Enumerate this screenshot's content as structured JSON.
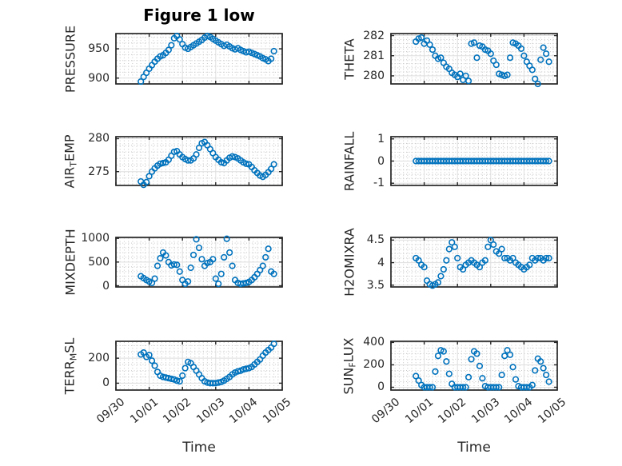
{
  "figure": {
    "title": "Figure 1 low",
    "xlabel": "Time",
    "background": "#ffffff",
    "marker_color": "#0072BD",
    "frame_color": "#262626",
    "major_grid_color": "#dedede",
    "minor_grid_color": "#c6c6c6",
    "text_color": "#262626"
  },
  "chart_data": {
    "type": "scatter",
    "title": "Figure 1 low",
    "xlabel": "Time",
    "x_unit": "days since 09/30",
    "xlim": [
      0,
      5
    ],
    "x_major_ticks": [
      0,
      1,
      2,
      3,
      4,
      5
    ],
    "x_tick_labels": [
      "09/30",
      "10/01",
      "10/02",
      "10/03",
      "10/04",
      "10/05"
    ],
    "x_minor_step": 0.125,
    "grid": "major solid + dotted minor, box on, ticks at majors",
    "legend": "none",
    "x": [
      0.75,
      0.833,
      0.917,
      1,
      1.083,
      1.167,
      1.25,
      1.333,
      1.417,
      1.5,
      1.583,
      1.667,
      1.75,
      1.833,
      1.917,
      2,
      2.083,
      2.167,
      2.25,
      2.333,
      2.417,
      2.5,
      2.583,
      2.667,
      2.75,
      2.833,
      2.917,
      3,
      3.083,
      3.167,
      3.25,
      3.333,
      3.417,
      3.5,
      3.583,
      3.667,
      3.75,
      3.833,
      3.917,
      4,
      4.083,
      4.167,
      4.25,
      4.333,
      4.417,
      4.5,
      4.583,
      4.667,
      4.75
    ],
    "subplots": [
      {
        "name": "PRESSURE",
        "row": 0,
        "col": 0,
        "label_parts": [
          {
            "text": "PRESSURE"
          }
        ],
        "ylim": [
          890,
          976
        ],
        "yticks": [
          900,
          950
        ],
        "ytick_labels": [
          "900",
          "950"
        ],
        "y_minor_step": 10,
        "values": [
          894,
          902,
          909,
          916,
          922,
          928,
          933,
          937,
          939,
          943,
          948,
          956,
          968,
          972,
          966,
          958,
          952,
          950,
          953,
          956,
          959,
          962,
          965,
          969,
          972,
          970,
          967,
          964,
          961,
          958,
          955,
          957,
          954,
          951,
          949,
          951,
          948,
          946,
          944,
          945,
          943,
          941,
          939,
          937,
          934,
          932,
          929,
          933,
          946
        ]
      },
      {
        "name": "THETA",
        "row": 0,
        "col": 1,
        "label_parts": [
          {
            "text": "THETA"
          }
        ],
        "ylim": [
          279.6,
          282.1
        ],
        "yticks": [
          280,
          281,
          282
        ],
        "ytick_labels": [
          "280",
          "281",
          "282"
        ],
        "y_minor_step": 0.2,
        "values": [
          281.7,
          281.85,
          281.9,
          281.6,
          281.75,
          281.55,
          281.3,
          281,
          280.85,
          280.9,
          280.65,
          280.45,
          280.35,
          280.15,
          280.05,
          279.95,
          280.1,
          279.8,
          280,
          279.75,
          281.6,
          281.65,
          280.9,
          281.5,
          281.45,
          281.3,
          281.25,
          281.1,
          280.75,
          280.55,
          280.1,
          280.05,
          280,
          280.05,
          280.9,
          281.65,
          281.6,
          281.5,
          281.35,
          281,
          280.7,
          280.5,
          280.3,
          279.85,
          279.6,
          280.8,
          281.4,
          281.1,
          280.7
        ]
      },
      {
        "name": "AIR_TEMP",
        "row": 1,
        "col": 0,
        "label_parts": [
          {
            "text": "AIR"
          },
          {
            "text": "T",
            "sub": true
          },
          {
            "text": "EMP"
          }
        ],
        "ylim": [
          272.9,
          280.3
        ],
        "yticks": [
          275,
          280
        ],
        "ytick_labels": [
          "275",
          "280"
        ],
        "y_minor_step": 1,
        "values": [
          273.5,
          273,
          273.4,
          274.3,
          275,
          275.5,
          275.9,
          276.2,
          276.3,
          276.4,
          276.8,
          277.4,
          278,
          278.1,
          277.6,
          277.2,
          276.9,
          276.7,
          276.7,
          277,
          277.6,
          278.6,
          279.3,
          279.5,
          279,
          278.4,
          277.8,
          277.2,
          276.8,
          276.4,
          276.3,
          276.7,
          277.1,
          277.3,
          277.2,
          277,
          276.7,
          276.4,
          276.2,
          276.1,
          275.7,
          275.2,
          274.8,
          274.4,
          274.2,
          274.5,
          274.9,
          275.4,
          276.1
        ]
      },
      {
        "name": "RAINFALL",
        "row": 1,
        "col": 1,
        "label_parts": [
          {
            "text": "RAINFALL"
          }
        ],
        "ylim": [
          -1.1,
          1.1
        ],
        "yticks": [
          -1,
          0,
          1
        ],
        "ytick_labels": [
          "-1",
          "0",
          "1"
        ],
        "y_minor_step": 0.2,
        "values": [
          0,
          0,
          0,
          0,
          0,
          0,
          0,
          0,
          0,
          0,
          0,
          0,
          0,
          0,
          0,
          0,
          0,
          0,
          0,
          0,
          0,
          0,
          0,
          0,
          0,
          0,
          0,
          0,
          0,
          0,
          0,
          0,
          0,
          0,
          0,
          0,
          0,
          0,
          0,
          0,
          0,
          0,
          0,
          0,
          0,
          0,
          0,
          0,
          0
        ]
      },
      {
        "name": "MIXDEPTH",
        "row": 2,
        "col": 0,
        "label_parts": [
          {
            "text": "MIXDEPTH"
          }
        ],
        "ylim": [
          -25,
          1020
        ],
        "yticks": [
          0,
          500,
          1000
        ],
        "ytick_labels": [
          "0",
          "500",
          "1000"
        ],
        "y_minor_step": 100,
        "values": [
          200,
          160,
          120,
          90,
          60,
          150,
          420,
          580,
          700,
          640,
          500,
          430,
          450,
          440,
          300,
          120,
          40,
          90,
          380,
          650,
          980,
          800,
          560,
          420,
          480,
          500,
          560,
          150,
          40,
          250,
          600,
          990,
          700,
          420,
          120,
          60,
          40,
          50,
          60,
          80,
          120,
          180,
          250,
          330,
          420,
          600,
          780,
          300,
          250
        ]
      },
      {
        "name": "H2OMIXRA",
        "row": 2,
        "col": 1,
        "label_parts": [
          {
            "text": "H2OMIXRA"
          }
        ],
        "ylim": [
          3.46,
          4.56
        ],
        "yticks": [
          3.5,
          4,
          4.5
        ],
        "ytick_labels": [
          "3.5",
          "4",
          "4.5"
        ],
        "y_minor_step": 0.1,
        "values": [
          4.1,
          4.05,
          3.95,
          3.9,
          3.6,
          3.52,
          3.49,
          3.52,
          3.56,
          3.7,
          3.85,
          4.05,
          4.3,
          4.45,
          4.35,
          4.1,
          3.9,
          3.85,
          3.95,
          4,
          4.05,
          4,
          3.95,
          3.9,
          4,
          4.05,
          4.35,
          4.5,
          4.4,
          4.25,
          4.2,
          4.3,
          4.1,
          4.1,
          4.05,
          4.1,
          4,
          3.95,
          3.9,
          3.85,
          3.9,
          3.95,
          4.1,
          4.05,
          4.1,
          4.1,
          4.05,
          4.1,
          4.1
        ]
      },
      {
        "name": "TERR_MSL",
        "row": 3,
        "col": 0,
        "label_parts": [
          {
            "text": "TERR"
          },
          {
            "text": "M",
            "sub": true
          },
          {
            "text": "SL"
          }
        ],
        "ylim": [
          -55,
          335
        ],
        "yticks": [
          0,
          200
        ],
        "ytick_labels": [
          "0",
          "200"
        ],
        "y_minor_step": 50,
        "values": [
          230,
          245,
          210,
          225,
          180,
          140,
          90,
          60,
          50,
          45,
          40,
          35,
          30,
          20,
          15,
          60,
          120,
          170,
          160,
          130,
          100,
          70,
          40,
          15,
          5,
          0,
          0,
          0,
          5,
          10,
          20,
          35,
          50,
          70,
          85,
          95,
          100,
          110,
          115,
          120,
          130,
          150,
          170,
          190,
          220,
          245,
          265,
          285,
          315
        ]
      },
      {
        "name": "SUN_FLUX",
        "row": 3,
        "col": 1,
        "label_parts": [
          {
            "text": "SUN"
          },
          {
            "text": "F",
            "sub": true
          },
          {
            "text": "LUX"
          }
        ],
        "ylim": [
          -25,
          410
        ],
        "yticks": [
          0,
          200,
          400
        ],
        "ytick_labels": [
          "0",
          "200",
          "400"
        ],
        "y_minor_step": 50,
        "values": [
          100,
          60,
          20,
          0,
          0,
          0,
          0,
          140,
          280,
          330,
          320,
          230,
          120,
          30,
          0,
          0,
          0,
          0,
          0,
          90,
          250,
          320,
          300,
          190,
          80,
          10,
          0,
          0,
          0,
          0,
          0,
          110,
          280,
          330,
          290,
          180,
          70,
          10,
          0,
          0,
          0,
          0,
          20,
          150,
          255,
          230,
          170,
          110,
          50
        ]
      }
    ]
  }
}
